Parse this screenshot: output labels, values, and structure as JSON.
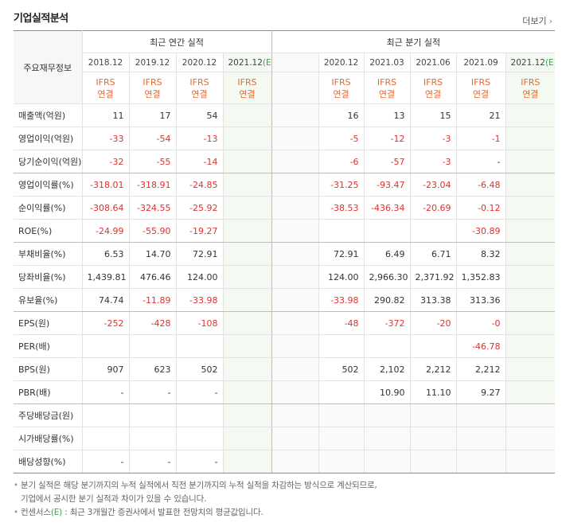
{
  "title": "기업실적분석",
  "more": "더보기",
  "table": {
    "corner": "주요재무정보",
    "groups": [
      "최근 연간 실적",
      "최근 분기 실적"
    ],
    "periods": [
      {
        "date": "2018.12",
        "basis": "IFRS",
        "scope": "연결"
      },
      {
        "date": "2019.12",
        "basis": "IFRS",
        "scope": "연결"
      },
      {
        "date": "2020.12",
        "basis": "IFRS",
        "scope": "연결"
      },
      {
        "date": "2021.12",
        "est": "(E)",
        "basis": "IFRS",
        "scope": "연결"
      },
      null,
      {
        "date": "2020.12",
        "basis": "IFRS",
        "scope": "연결"
      },
      {
        "date": "2021.03",
        "basis": "IFRS",
        "scope": "연결"
      },
      {
        "date": "2021.06",
        "basis": "IFRS",
        "scope": "연결"
      },
      {
        "date": "2021.09",
        "basis": "IFRS",
        "scope": "연결"
      },
      {
        "date": "2021.12",
        "est": "(E)",
        "basis": "IFRS",
        "scope": "연결"
      }
    ],
    "rows": [
      {
        "label": "매출액(억원)",
        "cells": [
          "11",
          "17",
          "54",
          null,
          null,
          "16",
          "13",
          "15",
          "21",
          null
        ]
      },
      {
        "label": "영업이익(억원)",
        "cells": [
          "-33",
          "-54",
          "-13",
          null,
          null,
          "-5",
          "-12",
          "-3",
          "-1",
          null
        ]
      },
      {
        "label": "당기순이익(억원)",
        "cells": [
          "-32",
          "-55",
          "-14",
          null,
          null,
          "-6",
          "-57",
          "-3",
          "-",
          null
        ]
      },
      {
        "label": "영업이익률(%)",
        "cells": [
          "-318.01",
          "-318.91",
          "-24.85",
          null,
          null,
          "-31.25",
          "-93.47",
          "-23.04",
          "-6.48",
          null
        ]
      },
      {
        "label": "순이익률(%)",
        "cells": [
          "-308.64",
          "-324.55",
          "-25.92",
          null,
          null,
          "-38.53",
          "-436.34",
          "-20.69",
          "-0.12",
          null
        ]
      },
      {
        "label": "ROE(%)",
        "cells": [
          "-24.99",
          "-55.90",
          "-19.27",
          null,
          null,
          null,
          null,
          null,
          "-30.89",
          null
        ]
      },
      {
        "label": "부채비율(%)",
        "cells": [
          "6.53",
          "14.70",
          "72.91",
          null,
          null,
          "72.91",
          "6.49",
          "6.71",
          "8.32",
          null
        ]
      },
      {
        "label": "당좌비율(%)",
        "cells": [
          "1,439.81",
          "476.46",
          "124.00",
          null,
          null,
          "124.00",
          "2,966.30",
          "2,371.92",
          "1,352.83",
          null
        ]
      },
      {
        "label": "유보율(%)",
        "cells": [
          "74.74",
          "-11.89",
          "-33.98",
          null,
          null,
          "-33.98",
          "290.82",
          "313.38",
          "313.36",
          null
        ]
      },
      {
        "label": "EPS(원)",
        "cells": [
          "-252",
          "-428",
          "-108",
          null,
          null,
          "-48",
          "-372",
          "-20",
          "-0",
          null
        ]
      },
      {
        "label": "PER(배)",
        "cells": [
          null,
          null,
          null,
          null,
          null,
          null,
          null,
          null,
          "-46.78",
          null
        ]
      },
      {
        "label": "BPS(원)",
        "cells": [
          "907",
          "623",
          "502",
          null,
          null,
          "502",
          "2,102",
          "2,212",
          "2,212",
          null
        ]
      },
      {
        "label": "PBR(배)",
        "cells": [
          "-",
          "-",
          "-",
          null,
          null,
          null,
          "10.90",
          "11.10",
          "9.27",
          null
        ]
      },
      {
        "label": "주당배당금(원)",
        "cells": [
          null,
          null,
          null,
          null,
          null,
          null,
          null,
          null,
          null,
          null
        ]
      },
      {
        "label": "시가배당률(%)",
        "cells": [
          null,
          null,
          null,
          null,
          null,
          null,
          null,
          null,
          null,
          null
        ]
      },
      {
        "label": "배당성향(%)",
        "cells": [
          "-",
          "-",
          "-",
          null,
          null,
          null,
          null,
          null,
          null,
          null
        ]
      }
    ]
  },
  "notes": [
    {
      "lines": [
        "분기 실적은 해당 분기까지의 누적 실적에서 직전 분기까지의 누적 실적을 차감하는 방식으로 계산되므로,",
        "기업에서 공시한 분기 실적과 차이가 있을 수 있습니다."
      ]
    },
    {
      "lines": [
        "컨센서스"
      ],
      "est": "(E)",
      "rest": " : 최근 3개월간 증권사에서 발표한 전망치의 평균값입니다."
    }
  ]
}
